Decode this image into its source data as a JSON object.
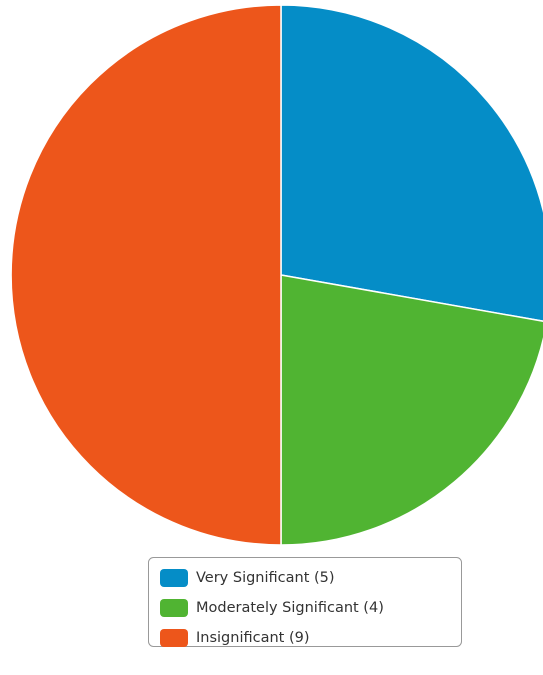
{
  "chart_data": {
    "type": "pie",
    "categories": [
      "Very Significant (5)",
      "Moderately Significant (4)",
      "Insignificant (9)"
    ],
    "values": [
      5,
      4,
      9
    ],
    "colors": [
      "#058dc7",
      "#50b432",
      "#ed561b"
    ],
    "legend": "bottom"
  }
}
